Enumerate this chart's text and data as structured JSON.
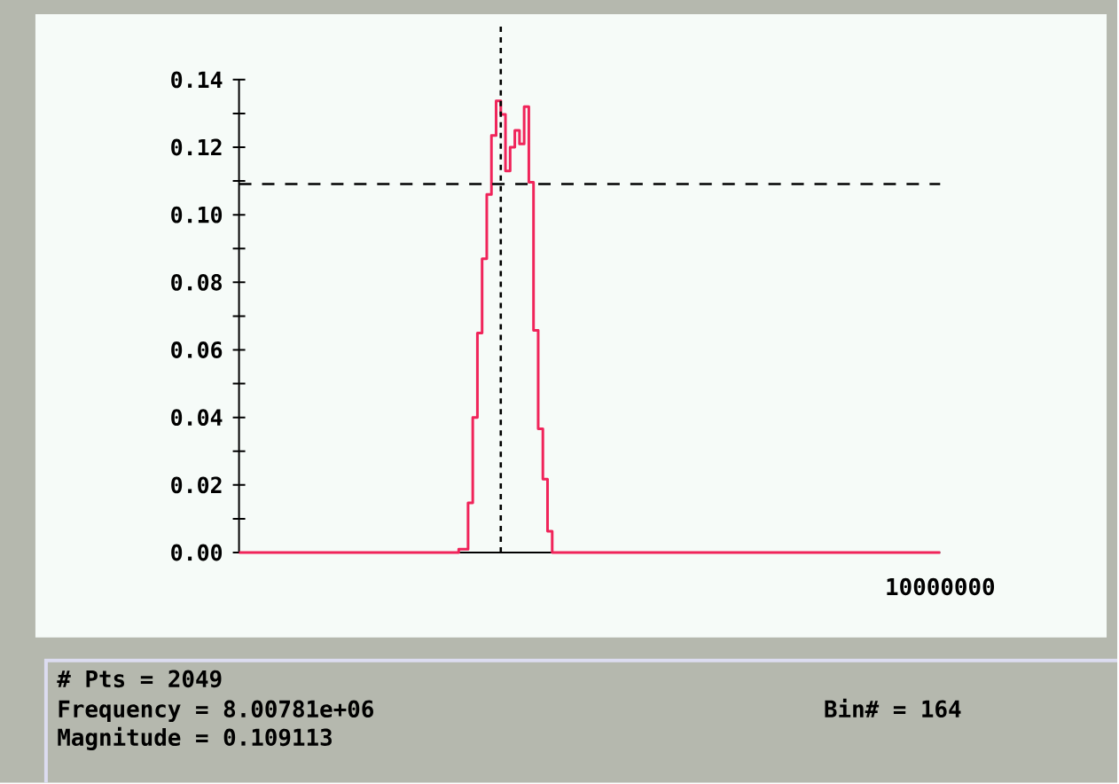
{
  "chart_data": {
    "type": "step",
    "ylim": [
      0,
      0.14
    ],
    "yticks": [
      {
        "value": 0,
        "label": "0.00"
      },
      {
        "value": 0.01,
        "label": null
      },
      {
        "value": 0.02,
        "label": "0.02"
      },
      {
        "value": 0.03,
        "label": null
      },
      {
        "value": 0.04,
        "label": "0.04"
      },
      {
        "value": 0.05,
        "label": null
      },
      {
        "value": 0.06,
        "label": "0.06"
      },
      {
        "value": 0.07,
        "label": null
      },
      {
        "value": 0.08,
        "label": "0.08"
      },
      {
        "value": 0.09,
        "label": null
      },
      {
        "value": 0.1,
        "label": "0.10"
      },
      {
        "value": 0.11,
        "label": null
      },
      {
        "value": 0.12,
        "label": "0.12"
      },
      {
        "value": 0.13,
        "label": null
      },
      {
        "value": 0.14,
        "label": "0.14"
      }
    ],
    "categories": [
      null,
      null,
      null,
      null,
      null,
      null,
      null,
      null,
      null,
      null,
      null,
      null,
      null,
      null,
      null,
      null,
      null,
      null,
      null,
      null,
      null,
      null,
      null,
      null,
      null,
      null,
      null,
      null,
      null,
      null,
      null,
      null,
      null,
      null,
      null,
      null,
      null,
      null,
      null,
      null,
      null,
      null,
      null,
      null,
      null,
      null,
      null,
      null,
      null,
      null,
      null,
      null,
      null,
      null,
      null,
      null,
      null,
      null,
      null,
      null,
      null,
      null,
      null,
      null,
      null,
      null,
      null,
      null,
      null,
      null,
      null,
      null,
      null,
      null,
      null,
      null,
      null,
      null,
      null,
      null,
      null,
      null,
      null,
      null,
      null,
      null,
      null,
      null,
      null,
      null,
      null,
      null,
      null,
      null,
      null,
      null,
      null,
      null,
      null,
      null,
      null,
      null,
      null,
      null,
      null,
      null,
      null,
      null,
      null,
      null,
      null,
      null,
      null,
      null,
      null,
      null,
      null,
      null,
      null,
      null,
      null,
      null,
      null,
      null,
      null,
      null,
      null,
      null,
      null,
      null,
      null,
      null,
      null,
      null,
      null,
      null,
      null,
      null,
      null,
      null,
      null,
      null,
      null,
      null,
      null,
      null,
      null,
      null,
      null,
      null,
      null
    ],
    "values": [
      0,
      0,
      0,
      0,
      0,
      0,
      0,
      0,
      0,
      0,
      0,
      0,
      0,
      0,
      0,
      0,
      0,
      0,
      0,
      0,
      0,
      0,
      0,
      0,
      0,
      0,
      0,
      0,
      0,
      0,
      0,
      0,
      0,
      0,
      0,
      0,
      0,
      0,
      0,
      0,
      0,
      0,
      0,
      0,
      0,
      0,
      0,
      0.001,
      0.001,
      0.0147,
      0.04,
      0.065,
      0.087,
      0.106,
      0.1235,
      0.1337,
      0.1297,
      0.113,
      0.12,
      0.125,
      0.121,
      0.132,
      0.1096,
      0.0658,
      0.0366,
      0.0217,
      0.0063,
      0,
      0,
      0,
      0,
      0,
      0,
      0,
      0,
      0,
      0,
      0,
      0,
      0,
      0,
      0,
      0,
      0,
      0,
      0,
      0,
      0,
      0,
      0,
      0,
      0,
      0,
      0,
      0,
      0,
      0,
      0,
      0,
      0,
      0,
      0,
      0,
      0,
      0,
      0,
      0,
      0,
      0,
      0,
      0,
      0,
      0,
      0,
      0,
      0,
      0,
      0,
      0,
      0,
      0,
      0,
      0,
      0,
      0,
      0,
      0,
      0,
      0,
      0,
      0,
      0,
      0,
      0,
      0,
      0,
      0,
      0,
      0,
      0,
      0,
      0,
      0,
      0,
      0,
      0,
      0,
      0,
      0,
      0,
      0
    ],
    "color": "#f0245a",
    "marker": "none",
    "ref_lines": [
      {
        "axis": "y",
        "value": 0.109113,
        "line_style": "dashed",
        "color": "#000000"
      }
    ],
    "annotations": [
      "10000000",
      "# Pts = 2049",
      "Frequency = 8.00781e+06",
      "Bin# = 164",
      "Magnitude = 0.109113"
    ]
  }
}
